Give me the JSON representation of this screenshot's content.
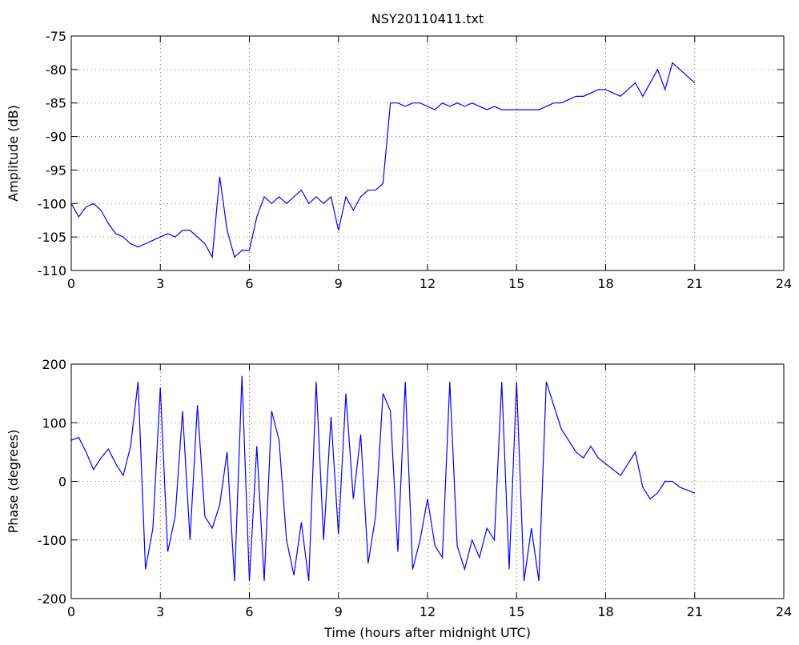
{
  "chart_data": [
    {
      "type": "line",
      "title": "NSY20110411.txt",
      "ylabel": "Amplitude (dB)",
      "color": "#0000ff",
      "grid": true,
      "x": [
        0,
        0.25,
        0.5,
        0.75,
        1,
        1.25,
        1.5,
        1.75,
        2,
        2.25,
        2.5,
        2.75,
        3,
        3.25,
        3.5,
        3.75,
        4,
        4.25,
        4.5,
        4.75,
        5,
        5.25,
        5.5,
        5.75,
        6,
        6.25,
        6.5,
        6.75,
        7,
        7.25,
        7.5,
        7.75,
        8,
        8.25,
        8.5,
        8.75,
        9,
        9.25,
        9.5,
        9.75,
        10,
        10.25,
        10.5,
        10.75,
        11,
        11.25,
        11.5,
        11.75,
        12,
        12.25,
        12.5,
        12.75,
        13,
        13.25,
        13.5,
        13.75,
        14,
        14.25,
        14.5,
        14.75,
        15,
        15.25,
        15.5,
        15.75,
        16,
        16.25,
        16.5,
        16.75,
        17,
        17.25,
        17.5,
        17.75,
        18,
        18.25,
        18.5,
        18.75,
        19,
        19.25,
        19.5,
        19.75,
        20,
        20.25,
        20.5,
        20.75,
        21
      ],
      "values": [
        -100,
        -102,
        -100.5,
        -100,
        -101,
        -103,
        -104.5,
        -105,
        -106,
        -106.5,
        -106,
        -105.5,
        -105,
        -104.5,
        -105,
        -104,
        -104,
        -105,
        -106,
        -108,
        -96,
        -104,
        -108,
        -107,
        -107,
        -102,
        -99,
        -100,
        -99,
        -100,
        -99,
        -98,
        -100,
        -99,
        -100,
        -99,
        -104,
        -99,
        -101,
        -99,
        -98,
        -98,
        -97,
        -85,
        -85,
        -85.5,
        -85,
        -85,
        -85.5,
        -86,
        -85,
        -85.5,
        -85,
        -85.5,
        -85,
        -85.5,
        -86,
        -85.5,
        -86,
        -86,
        -86,
        -86,
        -86,
        -86,
        -85.5,
        -85,
        -85,
        -84.5,
        -84,
        -84,
        -83.5,
        -83,
        -83,
        -83.5,
        -84,
        -83,
        -82,
        -84,
        -82,
        -80,
        -83,
        -79,
        -80,
        -81,
        -82
      ],
      "xlim": [
        0,
        24
      ],
      "xticks": [
        0,
        3,
        6,
        9,
        12,
        15,
        18,
        21,
        24
      ],
      "ylim": [
        -110,
        -75
      ],
      "yticks": [
        -110,
        -105,
        -100,
        -95,
        -90,
        -85,
        -80,
        -75
      ]
    },
    {
      "type": "line",
      "ylabel": "Phase (degrees)",
      "xlabel": "Time (hours after midnight UTC)",
      "color": "#0000ff",
      "grid": true,
      "x": [
        0,
        0.25,
        0.5,
        0.75,
        1,
        1.25,
        1.5,
        1.75,
        2,
        2.25,
        2.5,
        2.75,
        3,
        3.25,
        3.5,
        3.75,
        4,
        4.25,
        4.5,
        4.75,
        5,
        5.25,
        5.5,
        5.75,
        6,
        6.25,
        6.5,
        6.75,
        7,
        7.25,
        7.5,
        7.75,
        8,
        8.25,
        8.5,
        8.75,
        9,
        9.25,
        9.5,
        9.75,
        10,
        10.25,
        10.5,
        10.75,
        11,
        11.25,
        11.5,
        11.75,
        12,
        12.25,
        12.5,
        12.75,
        13,
        13.25,
        13.5,
        13.75,
        14,
        14.25,
        14.5,
        14.75,
        15,
        15.25,
        15.5,
        15.75,
        16,
        16.25,
        16.5,
        16.75,
        17,
        17.25,
        17.5,
        17.75,
        18,
        18.25,
        18.5,
        18.75,
        19,
        19.25,
        19.5,
        19.75,
        20,
        20.25,
        20.5,
        20.75,
        21
      ],
      "values": [
        70,
        75,
        50,
        20,
        40,
        55,
        30,
        10,
        60,
        170,
        -150,
        -80,
        160,
        -120,
        -60,
        120,
        -100,
        130,
        -60,
        -80,
        -40,
        50,
        -170,
        180,
        -170,
        60,
        -170,
        120,
        70,
        -100,
        -160,
        -70,
        -170,
        170,
        -100,
        110,
        -90,
        150,
        -30,
        80,
        -140,
        -60,
        150,
        120,
        -120,
        170,
        -150,
        -100,
        -30,
        -110,
        -130,
        170,
        -110,
        -150,
        -100,
        -130,
        -80,
        -100,
        170,
        -150,
        170,
        -170,
        -80,
        -170,
        170,
        130,
        90,
        70,
        50,
        40,
        60,
        40,
        30,
        20,
        10,
        30,
        50,
        -10,
        -30,
        -20,
        0,
        0,
        -10,
        -15,
        -20
      ],
      "xlim": [
        0,
        24
      ],
      "xticks": [
        0,
        3,
        6,
        9,
        12,
        15,
        18,
        21,
        24
      ],
      "ylim": [
        -200,
        200
      ],
      "yticks": [
        -200,
        -100,
        0,
        100,
        200
      ]
    }
  ]
}
